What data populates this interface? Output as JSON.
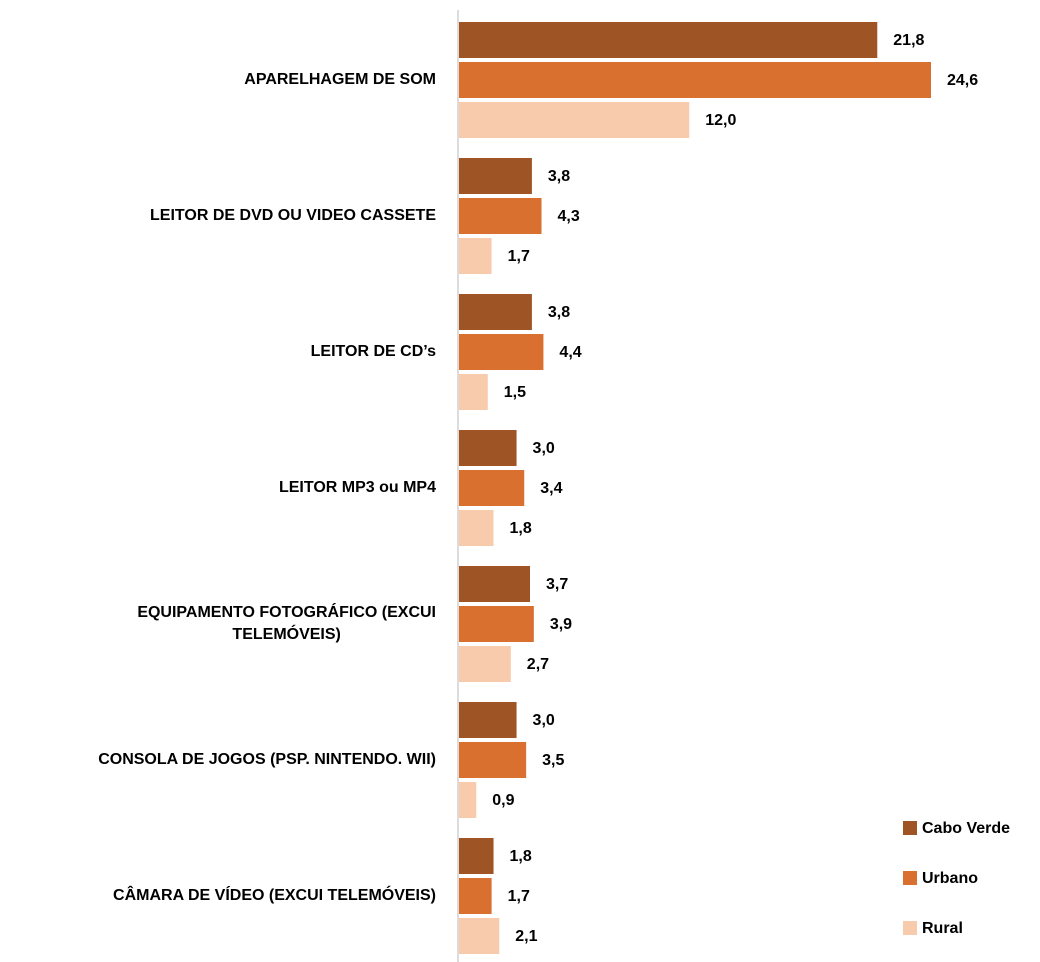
{
  "chart_data": {
    "type": "bar",
    "orientation": "horizontal",
    "categories": [
      "APARELHAGEM DE SOM",
      "LEITOR DE DVD OU VIDEO CASSETE",
      "LEITOR DE CD’s",
      "LEITOR MP3 ou MP4",
      "EQUIPAMENTO FOTOGRÁFICO (EXCUI TELEMÓVEIS)",
      "CONSOLA DE JOGOS (PSP. NINTENDO. WII)",
      "CÂMARA DE VÍDEO (EXCUI TELEMÓVEIS)"
    ],
    "series": [
      {
        "name": "Cabo Verde",
        "color": "#9e5424",
        "values": [
          21.8,
          3.8,
          3.8,
          3.0,
          3.7,
          3.0,
          1.8
        ],
        "value_labels": [
          "21,8",
          "3,8",
          "3,8",
          "3,0",
          "3,7",
          "3,0",
          "1,8"
        ]
      },
      {
        "name": "Urbano",
        "color": "#d97030",
        "values": [
          24.6,
          4.3,
          4.4,
          3.4,
          3.9,
          3.5,
          1.7
        ],
        "value_labels": [
          "24,6",
          "4,3",
          "4,4",
          "3,4",
          "3,9",
          "3,5",
          "1,7"
        ]
      },
      {
        "name": "Rural",
        "color": "#f8cbad",
        "values": [
          12.0,
          1.7,
          1.5,
          1.8,
          2.7,
          0.9,
          2.1
        ],
        "value_labels": [
          "12,0",
          "1,7",
          "1,5",
          "1,8",
          "2,7",
          "0,9",
          "2,1"
        ]
      }
    ],
    "legend": "bottom-right"
  }
}
